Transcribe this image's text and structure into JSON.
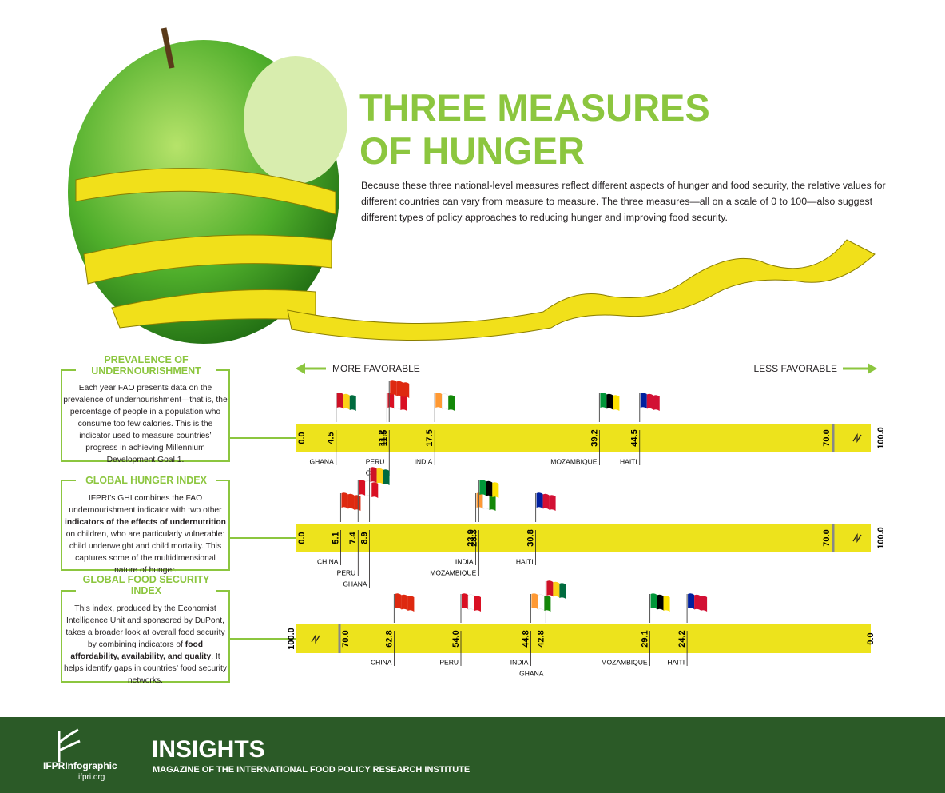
{
  "title": "THREE MEASURES OF HUNGER",
  "description": "Because these three national-level measures reflect different aspects of hunger and food security, the relative values for different countries can vary from measure to measure. The three measures—all on a scale of 0 to 100—also suggest different types of policy approaches to reducing hunger and improving food security.",
  "direction": {
    "left": "MORE FAVORABLE",
    "right": "LESS FAVORABLE"
  },
  "chart_data": [
    {
      "type": "scale",
      "title": "PREVALENCE OF UNDERNOURISHMENT",
      "description": [
        "Each year FAO presents data on the prevalence of undernourishment—that is, the percentage of people in a population who consume too few calories. This is the indicator used to measure countries’ progress in achieving Millennium Development Goal 1."
      ],
      "categories": [
        "GHANA",
        "PERU",
        "CHINA",
        "INDIA",
        "MOZAMBIQUE",
        "HAITI"
      ],
      "values": [
        4.5,
        11.2,
        11.5,
        17.5,
        39.2,
        44.5
      ],
      "flag_colors": [
        [
          "#ce1126",
          "#fcd116",
          "#006b3f"
        ],
        [
          "#d91023",
          "#ffffff",
          "#d91023"
        ],
        [
          "#de2910",
          "#de2910",
          "#de2910"
        ],
        [
          "#ff9933",
          "#ffffff",
          "#138808"
        ],
        [
          "#009639",
          "#000000",
          "#fce100"
        ],
        [
          "#00209f",
          "#d21034",
          "#d21034"
        ]
      ],
      "color": "#ede31c",
      "xlim": [
        0,
        100
      ],
      "axis_break": [
        70,
        100
      ],
      "xticks": [
        {
          "value": 0,
          "label": "0.0"
        },
        {
          "value": 70,
          "label": "70.0"
        },
        {
          "value": 100,
          "label": "100.0"
        }
      ]
    },
    {
      "type": "scale",
      "title": "GLOBAL HUNGER INDEX",
      "description": [
        "IFPRI’s GHI combines the FAO undernourishment indicator with two other ",
        "indicators of the effects of undernutrition",
        " on children, who are particularly vulnerable: child underweight and child mortality. This captures some of the multidimensional nature of hunger."
      ],
      "categories": [
        "CHINA",
        "PERU",
        "GHANA",
        "INDIA",
        "MOZAMBIQUE",
        "HAITI"
      ],
      "values": [
        5.1,
        7.4,
        8.9,
        22.9,
        23.3,
        30.8
      ],
      "flag_colors": [
        [
          "#de2910",
          "#de2910",
          "#de2910"
        ],
        [
          "#d91023",
          "#ffffff",
          "#d91023"
        ],
        [
          "#ce1126",
          "#fcd116",
          "#006b3f"
        ],
        [
          "#ff9933",
          "#ffffff",
          "#138808"
        ],
        [
          "#009639",
          "#000000",
          "#fce100"
        ],
        [
          "#00209f",
          "#d21034",
          "#d21034"
        ]
      ],
      "color": "#ede31c",
      "xlim": [
        0,
        100
      ],
      "axis_break": [
        70,
        100
      ],
      "xticks": [
        {
          "value": 0,
          "label": "0.0"
        },
        {
          "value": 70,
          "label": "70.0"
        },
        {
          "value": 100,
          "label": "100.0"
        }
      ]
    },
    {
      "type": "scale",
      "title": "GLOBAL FOOD SECURITY INDEX",
      "description": [
        "This index, produced by the Economist Intelligence Unit and sponsored by DuPont, takes a broader look at overall food security by combining indicators of ",
        "food affordability, availability, and quality",
        ". It helps identify gaps in countries’ food security networks."
      ],
      "categories": [
        "CHINA",
        "PERU",
        "INDIA",
        "GHANA",
        "MOZAMBIQUE",
        "HAITI"
      ],
      "values": [
        62.8,
        54.0,
        44.8,
        42.8,
        29.1,
        24.2
      ],
      "value_labels": [
        "62.8",
        "54.0",
        "44.8",
        "42.8",
        "29.1",
        "24.2"
      ],
      "flag_colors": [
        [
          "#de2910",
          "#de2910",
          "#de2910"
        ],
        [
          "#d91023",
          "#ffffff",
          "#d91023"
        ],
        [
          "#ff9933",
          "#ffffff",
          "#138808"
        ],
        [
          "#ce1126",
          "#fcd116",
          "#006b3f"
        ],
        [
          "#009639",
          "#000000",
          "#fce100"
        ],
        [
          "#00209f",
          "#d21034",
          "#d21034"
        ]
      ],
      "color": "#ede31c",
      "xlim": [
        100,
        0
      ],
      "axis_break": [
        70,
        100
      ],
      "xticks": [
        {
          "value": 100,
          "label": "100.0"
        },
        {
          "value": 70,
          "label": "70.0"
        },
        {
          "value": 0,
          "label": "0.0"
        }
      ]
    }
  ],
  "footer": {
    "logo": "IFPRInfographic",
    "url": "ifpri.org",
    "brand": "INSIGHTS",
    "tagline": "MAGAZINE OF THE INTERNATIONAL FOOD POLICY RESEARCH INSTITUTE"
  }
}
